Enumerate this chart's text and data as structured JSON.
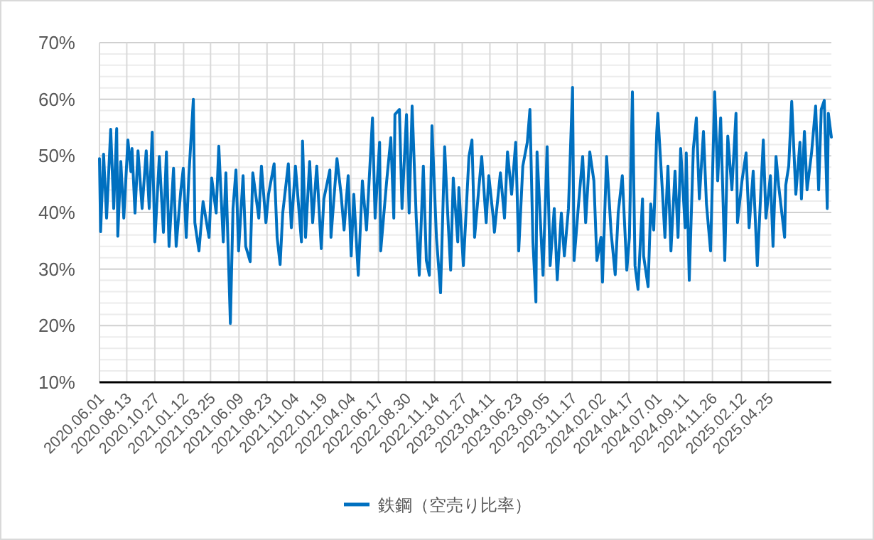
{
  "chart_data": {
    "type": "line",
    "legend": "bottom",
    "grid": true,
    "marker": "none",
    "line_style": "solid",
    "ylim": [
      10,
      70
    ],
    "yticks": [
      {
        "value": 10,
        "label": "10%"
      },
      {
        "value": 20,
        "label": "20%"
      },
      {
        "value": 30,
        "label": "30%"
      },
      {
        "value": 40,
        "label": "40%"
      },
      {
        "value": 50,
        "label": "50%"
      },
      {
        "value": 60,
        "label": "60%"
      },
      {
        "value": 70,
        "label": "70%"
      }
    ],
    "xlim": [
      "2020-06-01",
      "2025-10-10"
    ],
    "xticks": [
      {
        "value": "2020-06-01",
        "label": "2020.06.01"
      },
      {
        "value": "2020-08-13",
        "label": "2020.08.13"
      },
      {
        "value": "2020-10-27",
        "label": "2020.10.27"
      },
      {
        "value": "2021-01-12",
        "label": "2021.01.12"
      },
      {
        "value": "2021-03-25",
        "label": "2021.03.25"
      },
      {
        "value": "2021-06-09",
        "label": "2021.06.09"
      },
      {
        "value": "2021-08-23",
        "label": "2021.08.23"
      },
      {
        "value": "2021-11-04",
        "label": "2021.11.04"
      },
      {
        "value": "2022-01-19",
        "label": "2022.01.19"
      },
      {
        "value": "2022-04-04",
        "label": "2022.04.04"
      },
      {
        "value": "2022-06-17",
        "label": "2022.06.17"
      },
      {
        "value": "2022-08-30",
        "label": "2022.08.30"
      },
      {
        "value": "2022-11-14",
        "label": "2022.11.14"
      },
      {
        "value": "2023-01-27",
        "label": "2023.01.27"
      },
      {
        "value": "2023-04-11",
        "label": "2023.04.11"
      },
      {
        "value": "2023-06-23",
        "label": "2023.06.23"
      },
      {
        "value": "2023-09-05",
        "label": "2023.09.05"
      },
      {
        "value": "2023-11-17",
        "label": "2023.11.17"
      },
      {
        "value": "2024-02-02",
        "label": "2024.02.02"
      },
      {
        "value": "2024-04-17",
        "label": "2024.04.17"
      },
      {
        "value": "2024-07-01",
        "label": "2024.07.01"
      },
      {
        "value": "2024-09-11",
        "label": "2024.09.11"
      },
      {
        "value": "2024-11-26",
        "label": "2024.11.26"
      },
      {
        "value": "2025-02-12",
        "label": "2025.02.12"
      },
      {
        "value": "2025-04-25",
        "label": "2025.04.25"
      }
    ],
    "x": [
      "2020-06-01",
      "2020-06-04",
      "2020-06-12",
      "2020-06-20",
      "2020-07-01",
      "2020-07-09",
      "2020-07-17",
      "2020-07-20",
      "2020-07-28",
      "2020-08-05",
      "2020-08-16",
      "2020-08-24",
      "2020-08-27",
      "2020-09-04",
      "2020-09-12",
      "2020-09-23",
      "2020-10-04",
      "2020-10-12",
      "2020-10-20",
      "2020-10-27",
      "2020-11-08",
      "2020-11-19",
      "2020-11-27",
      "2020-12-04",
      "2020-12-16",
      "2020-12-23",
      "2021-01-04",
      "2021-01-11",
      "2021-01-19",
      "2021-01-26",
      "2021-02-07",
      "2021-02-11",
      "2021-02-22",
      "2021-03-05",
      "2021-03-21",
      "2021-03-28",
      "2021-04-09",
      "2021-04-16",
      "2021-04-28",
      "2021-05-05",
      "2021-05-17",
      "2021-05-24",
      "2021-06-01",
      "2021-06-08",
      "2021-06-20",
      "2021-06-27",
      "2021-07-09",
      "2021-07-16",
      "2021-08-01",
      "2021-08-08",
      "2021-08-20",
      "2021-08-27",
      "2021-09-11",
      "2021-09-19",
      "2021-09-27",
      "2021-10-04",
      "2021-10-19",
      "2021-10-27",
      "2021-11-07",
      "2021-11-23",
      "2021-11-26",
      "2021-12-04",
      "2021-12-15",
      "2021-12-23",
      "2022-01-03",
      "2022-01-15",
      "2022-01-22",
      "2022-02-07",
      "2022-02-10",
      "2022-02-26",
      "2022-03-09",
      "2022-03-17",
      "2022-03-28",
      "2022-04-05",
      "2022-04-12",
      "2022-04-24",
      "2022-05-05",
      "2022-05-16",
      "2022-06-01",
      "2022-06-08",
      "2022-06-20",
      "2022-06-23",
      "2022-07-09",
      "2022-07-20",
      "2022-07-28",
      "2022-07-31",
      "2022-08-12",
      "2022-08-19",
      "2022-08-31",
      "2022-09-07",
      "2022-09-15",
      "2022-09-26",
      "2022-10-04",
      "2022-10-15",
      "2022-10-23",
      "2022-10-31",
      "2022-11-07",
      "2022-11-19",
      "2022-11-30",
      "2022-12-11",
      "2022-12-19",
      "2022-12-27",
      "2023-01-03",
      "2023-01-15",
      "2023-01-18",
      "2023-01-30",
      "2023-02-14",
      "2023-02-22",
      "2023-03-01",
      "2023-03-13",
      "2023-03-20",
      "2023-04-01",
      "2023-04-08",
      "2023-04-20",
      "2023-04-23",
      "2023-05-09",
      "2023-05-20",
      "2023-05-28",
      "2023-06-08",
      "2023-06-19",
      "2023-06-27",
      "2023-07-08",
      "2023-07-20",
      "2023-07-27",
      "2023-08-04",
      "2023-08-12",
      "2023-08-15",
      "2023-08-31",
      "2023-09-11",
      "2023-09-19",
      "2023-09-30",
      "2023-10-08",
      "2023-10-19",
      "2023-10-27",
      "2023-11-07",
      "2023-11-18",
      "2023-11-22",
      "2023-12-04",
      "2023-12-15",
      "2023-12-23",
      "2024-01-03",
      "2024-01-14",
      "2024-01-22",
      "2024-02-02",
      "2024-02-06",
      "2024-02-17",
      "2024-02-29",
      "2024-03-11",
      "2024-03-19",
      "2024-03-30",
      "2024-04-11",
      "2024-04-18",
      "2024-04-26",
      "2024-05-03",
      "2024-05-11",
      "2024-05-23",
      "2024-05-26",
      "2024-06-07",
      "2024-06-14",
      "2024-06-22",
      "2024-06-30",
      "2024-07-03",
      "2024-07-15",
      "2024-07-22",
      "2024-07-30",
      "2024-08-07",
      "2024-08-18",
      "2024-08-26",
      "2024-09-02",
      "2024-09-14",
      "2024-09-17",
      "2024-09-25",
      "2024-10-06",
      "2024-10-14",
      "2024-10-22",
      "2024-11-02",
      "2024-11-10",
      "2024-11-21",
      "2024-12-02",
      "2024-12-10",
      "2024-12-18",
      "2024-12-29",
      "2025-01-06",
      "2025-01-17",
      "2025-01-28",
      "2025-02-01",
      "2025-02-13",
      "2025-02-24",
      "2025-03-04",
      "2025-03-15",
      "2025-03-26",
      "2025-04-11",
      "2025-04-18",
      "2025-04-30",
      "2025-05-07",
      "2025-05-15",
      "2025-05-22",
      "2025-06-07",
      "2025-06-10",
      "2025-06-18",
      "2025-06-26",
      "2025-07-07",
      "2025-07-18",
      "2025-07-22",
      "2025-07-30",
      "2025-08-06",
      "2025-08-18",
      "2025-08-29",
      "2025-09-06",
      "2025-09-13",
      "2025-09-21",
      "2025-09-29",
      "2025-10-02",
      "2025-10-10"
    ],
    "series": [
      {
        "name": "鉄鋼（空売り比率）",
        "color": "#0070c0",
        "values": [
          49.5,
          36.6,
          50.3,
          39,
          54.7,
          40.7,
          54.8,
          35.8,
          49,
          39,
          52.8,
          47.2,
          51.3,
          39.9,
          50.9,
          40.7,
          50.9,
          40.7,
          54.2,
          34.8,
          49.9,
          36.5,
          50.7,
          34,
          47.8,
          34,
          43.6,
          47.8,
          35.6,
          46.5,
          60,
          38.2,
          33.2,
          41.9,
          35.6,
          46.1,
          39.9,
          51.7,
          34.8,
          47,
          20.4,
          40.7,
          47.5,
          33.2,
          46.5,
          34,
          31.3,
          47,
          39,
          48.2,
          38.2,
          43.2,
          48.6,
          35.6,
          30.8,
          39.9,
          48.6,
          37.3,
          48.2,
          34.8,
          52.6,
          35.6,
          49,
          38.2,
          48.2,
          33.6,
          42.4,
          47.5,
          35.6,
          49.5,
          43.2,
          36.9,
          46.5,
          32.3,
          43.2,
          28.9,
          45.6,
          36.9,
          56.7,
          39,
          52.4,
          33.2,
          45.6,
          53.2,
          39,
          57.3,
          58.2,
          40.7,
          57.3,
          39.9,
          58.8,
          39,
          28.9,
          48.2,
          31.5,
          28.9,
          55.3,
          35.6,
          25.8,
          51.6,
          39.9,
          29.8,
          46.1,
          34.8,
          44.4,
          30.6,
          49.9,
          52.8,
          35.6,
          44.8,
          49.9,
          38.2,
          46.5,
          39,
          36.5,
          47,
          39,
          50.7,
          43.2,
          52.4,
          33.2,
          48.2,
          52.4,
          58.2,
          34.8,
          24.2,
          50.7,
          28.9,
          51.6,
          30.6,
          40.7,
          28.1,
          39.9,
          32.3,
          40.7,
          62.1,
          31.5,
          41.5,
          49.9,
          38.2,
          50.7,
          45.6,
          31.5,
          35.6,
          27.7,
          49.9,
          36.5,
          29,
          39.9,
          46.5,
          29.8,
          35.6,
          61.3,
          30.6,
          26.4,
          42.4,
          32.3,
          26.9,
          41.5,
          36.9,
          54.1,
          57.5,
          44,
          35.6,
          48.2,
          33.2,
          47.3,
          35.6,
          51.3,
          37.3,
          50.5,
          28,
          51.3,
          56.7,
          42.4,
          54.3,
          41.5,
          33.2,
          61.3,
          45.6,
          56.7,
          31.5,
          53.5,
          44,
          57.5,
          38.2,
          45.6,
          50.5,
          37.3,
          47.3,
          30.6,
          52.8,
          39,
          46.5,
          34,
          49.9,
          44.8,
          35.6,
          44.8,
          48.2,
          59.6,
          43.2,
          52.4,
          42.4,
          54.3,
          44,
          50.5,
          58.8,
          44,
          58.2,
          59.8,
          40.7,
          57.5,
          53.3
        ]
      }
    ]
  }
}
